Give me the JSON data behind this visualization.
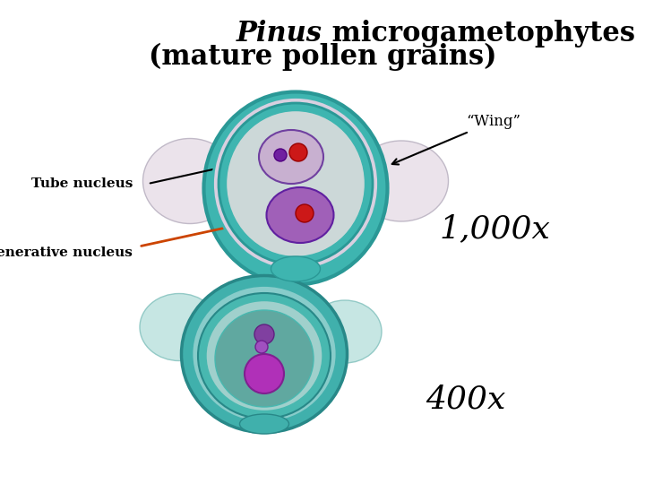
{
  "title_italic": "Pinus",
  "title_normal": " microgametophytes",
  "title_line2": "(mature pollen grains)",
  "title_fontsize": 22,
  "bg_color": "#ffffff",
  "wing_label": "“Wing”",
  "tube_label": "Tube nucleus",
  "generative_label": "Generative nucleus",
  "label_fontsize": 11,
  "mag1_label": "1,000x",
  "mag1_fontsize": 26,
  "mag2_label": "400x",
  "mag2_fontsize": 26
}
